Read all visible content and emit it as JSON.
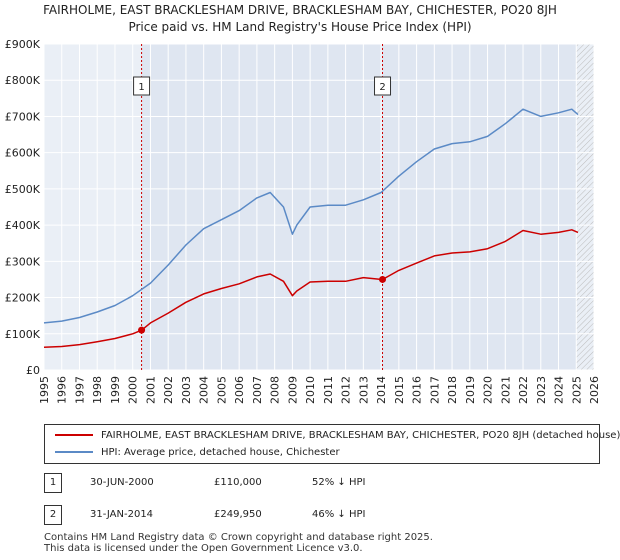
{
  "chart_data": {
    "type": "line",
    "title_line1": "FAIRHOLME, EAST BRACKLESHAM DRIVE, BRACKLESHAM BAY, CHICHESTER, PO20 8JH",
    "title_line2": "Price paid vs. HM Land Registry's House Price Index (HPI)",
    "x_ticks": [
      "1995",
      "1996",
      "1997",
      "1998",
      "1999",
      "2000",
      "2001",
      "2002",
      "2003",
      "2004",
      "2005",
      "2006",
      "2007",
      "2008",
      "2009",
      "2010",
      "2011",
      "2012",
      "2013",
      "2014",
      "2015",
      "2016",
      "2017",
      "2018",
      "2019",
      "2020",
      "2021",
      "2022",
      "2023",
      "2024",
      "2025",
      "2026"
    ],
    "y_ticks": [
      "£0",
      "£100K",
      "£200K",
      "£300K",
      "£400K",
      "£500K",
      "£600K",
      "£700K",
      "£800K",
      "£900K"
    ],
    "xlim": [
      1995,
      2026
    ],
    "ylim": [
      0,
      900000
    ],
    "grid": true,
    "hatched_from": 2025.0,
    "series": [
      {
        "name": "HPI: Average price, detached house, Chichester",
        "color": "#5b8ac6",
        "x": [
          1995,
          1996,
          1997,
          1998,
          1999,
          2000,
          2001,
          2002,
          2003,
          2004,
          2005,
          2006,
          2007,
          2007.75,
          2008.5,
          2009.0,
          2009.25,
          2010,
          2011,
          2012,
          2013,
          2014,
          2015,
          2016,
          2017,
          2018,
          2019,
          2020,
          2021,
          2022,
          2023,
          2024,
          2024.75,
          2025.1
        ],
        "y": [
          130000,
          135000,
          145000,
          160000,
          178000,
          205000,
          240000,
          290000,
          345000,
          390000,
          415000,
          440000,
          475000,
          490000,
          450000,
          375000,
          400000,
          450000,
          455000,
          455000,
          470000,
          490000,
          535000,
          575000,
          610000,
          625000,
          630000,
          645000,
          680000,
          720000,
          700000,
          710000,
          720000,
          705000
        ]
      },
      {
        "name": "FAIRHOLME, EAST BRACKLESHAM DRIVE, BRACKLESHAM BAY, CHICHESTER, PO20 8JH (detached house)",
        "color": "#cc0000",
        "x": [
          1995,
          1996,
          1997,
          1998,
          1999,
          2000,
          2000.5,
          2001,
          2002,
          2003,
          2004,
          2005,
          2006,
          2007,
          2007.75,
          2008.5,
          2009.0,
          2009.25,
          2010,
          2011,
          2012,
          2013,
          2014.08,
          2015,
          2016,
          2017,
          2018,
          2019,
          2020,
          2021,
          2022,
          2023,
          2024,
          2024.75,
          2025.1
        ],
        "y": [
          63000,
          65000,
          70000,
          78000,
          87000,
          100000,
          110000,
          130000,
          157000,
          187000,
          210000,
          225000,
          238000,
          257000,
          265000,
          245000,
          205000,
          218000,
          243000,
          245000,
          245000,
          255000,
          249950,
          275000,
          295000,
          315000,
          323000,
          326000,
          335000,
          355000,
          385000,
          375000,
          380000,
          387000,
          380000
        ]
      }
    ],
    "transactions": [
      {
        "label": "1",
        "date": "30-JUN-2000",
        "x": 2000.5,
        "price": 110000,
        "price_label": "£110,000",
        "hpi_diff": "52% ↓ HPI"
      },
      {
        "label": "2",
        "date": "31-JAN-2014",
        "x": 2014.08,
        "price": 249950,
        "price_label": "£249,950",
        "hpi_diff": "46% ↓ HPI"
      }
    ],
    "legend": [
      {
        "label": "FAIRHOLME, EAST BRACKLESHAM DRIVE, BRACKLESHAM BAY, CHICHESTER, PO20 8JH (detached house)",
        "color": "#cc0000"
      },
      {
        "label": "HPI: Average price, detached house, Chichester",
        "color": "#5b8ac6"
      }
    ],
    "footer_line1": "Contains HM Land Registry data © Crown copyright and database right 2025.",
    "footer_line2": "This data is licensed under the Open Government Licence v3.0."
  }
}
